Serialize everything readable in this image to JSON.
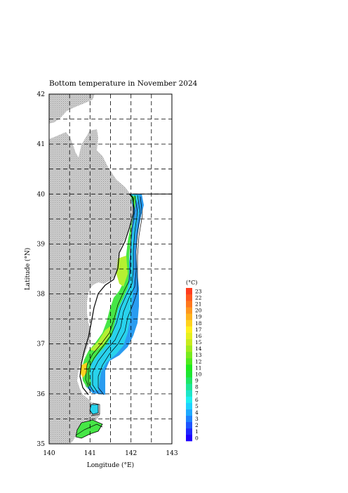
{
  "title": "Bottom temperature in November 2024",
  "axes": {
    "xlabel": "Longitude (°E)",
    "ylabel": "Latitude (°N)",
    "x_ticks": [
      "140",
      "141",
      "142",
      "143"
    ],
    "y_ticks": [
      "35",
      "36",
      "37",
      "38",
      "39",
      "40",
      "41",
      "42"
    ],
    "x_range": [
      140,
      143
    ],
    "y_range": [
      35,
      42
    ],
    "grid": "dashed, every 0.5°"
  },
  "colorbar": {
    "unit": "(°C)",
    "labels": [
      "0",
      "1",
      "2",
      "3",
      "4",
      "5",
      "6",
      "7",
      "8",
      "9",
      "10",
      "11",
      "12",
      "13",
      "14",
      "15",
      "16",
      "17",
      "18",
      "19",
      "20",
      "21",
      "22",
      "23"
    ],
    "colors": [
      "#1e00ff",
      "#1e28ff",
      "#1e55ff",
      "#1e82ff",
      "#1eaaff",
      "#1ed2ff",
      "#1ef0f0",
      "#1ee6c8",
      "#1ee696",
      "#1ee664",
      "#1ee632",
      "#1eeb1e",
      "#50eb1e",
      "#78eb1e",
      "#a0eb1e",
      "#c8eb1e",
      "#e6f01e",
      "#fff01e",
      "#ffd21e",
      "#ffb41e",
      "#ff961e",
      "#ff781e",
      "#ff5a1e",
      "#ff3c1e"
    ]
  },
  "colors": {
    "land": "#c8c8c8",
    "deep": "#2a9cf0",
    "mid": "#28d2ec",
    "shelf": "#46e646",
    "warm": "#b4f032",
    "hot": "#ffd21e"
  }
}
